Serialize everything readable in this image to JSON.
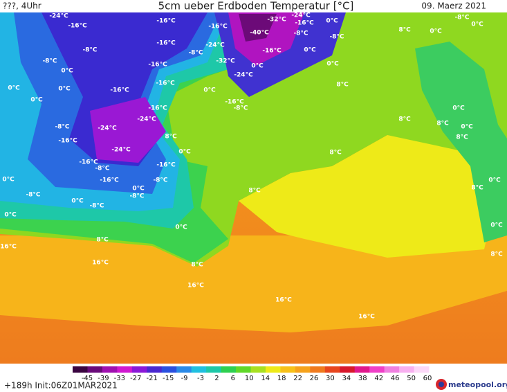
{
  "header": {
    "left": "???, 4Uhr",
    "title": "5cm ueber Erdboden Temperatur [°C]",
    "date": "09. Maerz 2021"
  },
  "footer": {
    "run": "+189h Init:06Z01MAR2021",
    "logo": "meteopool.org"
  },
  "colorbar": {
    "ticks": [
      -45,
      -39,
      -33,
      -27,
      -21,
      -15,
      -9,
      -3,
      2,
      6,
      10,
      14,
      18,
      22,
      26,
      30,
      34,
      38,
      42,
      46,
      50,
      60
    ]
  },
  "map": {
    "labels": [
      "-24°C",
      "-16°C",
      "-16°C",
      "-16°C",
      "-32°C",
      "-24°C",
      "-16°C",
      "-40°C",
      "-8°C",
      "0°C",
      "-8°C",
      "-8°C",
      "0°C",
      "0°C",
      "8°C",
      "-8°C",
      "-16°C",
      "-8°C",
      "-24°C",
      "0°C",
      "-16°C",
      "-8°C",
      "0°C",
      "-16°C",
      "-32°C",
      "0°C",
      "0°C",
      "0°C",
      "0°C",
      "-16°C",
      "-16°C",
      "0°C",
      "-24°C",
      "8°C",
      "0°C",
      "-16°C",
      "-8°C",
      "-16°C",
      "-24°C",
      "0°C",
      "8°C",
      "8°C",
      "0°C",
      "-8°C",
      "-24°C",
      "-16°C",
      "8°C",
      "8°C",
      "-24°C",
      "0°C",
      "8°C",
      "-16°C",
      "-8°C",
      "-16°C",
      "0°C",
      "-16°C",
      "-8°C",
      "0°C",
      "-8°C",
      "-8°C",
      "8°C",
      "0°C",
      "8°C",
      "0°C",
      "-8°C",
      "0°C",
      "0°C",
      "0°C",
      "8°C",
      "16°C",
      "8°C",
      "16°C",
      "8°C",
      "16°C",
      "16°C",
      "16°C"
    ]
  }
}
